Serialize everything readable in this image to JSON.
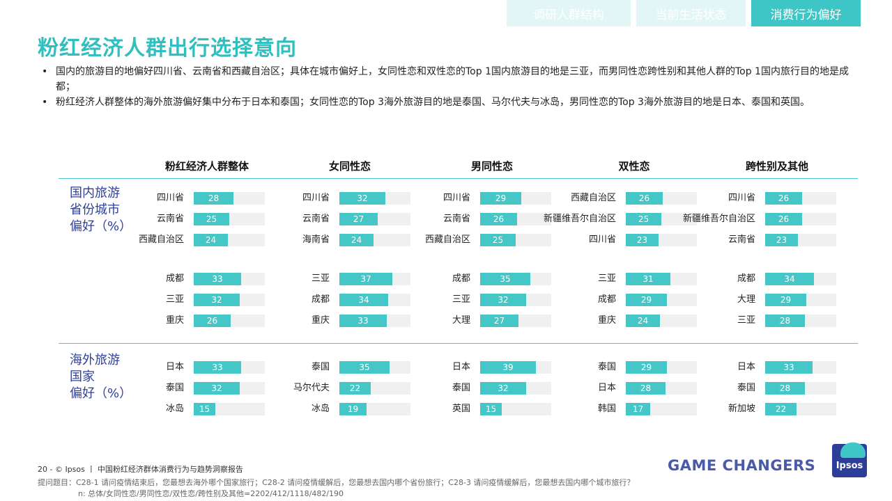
{
  "nav": {
    "tabs": [
      {
        "label": "调研人群结构",
        "active": false
      },
      {
        "label": "当前生活状态",
        "active": false
      },
      {
        "label": "消费行为偏好",
        "active": true
      }
    ]
  },
  "title": "粉红经济人群出行选择意向",
  "bullets": [
    "国内的旅游目的地偏好四川省、云南省和西藏自治区；具体在城市偏好上，女同性恋和双性恋的Top 1国内旅游目的地是三亚，而男同性恋跨性别和其他人群的Top 1国内旅行目的地是成都；",
    "粉红经济人群整体的海外旅游偏好集中分布于日本和泰国；女同性恋的Top 3海外旅游目的地是泰国、马尔代夫与冰岛，男同性恋的Top 3海外旅游目的地是日本、泰国和英国。"
  ],
  "section_labels": {
    "domestic": [
      "国内旅游",
      "省份城市",
      "偏好（%）"
    ],
    "overseas": [
      "海外旅游",
      "国家",
      "偏好（%）"
    ]
  },
  "chart_data": {
    "type": "bar",
    "unit": "%",
    "groups": [
      "粉红经济人群整体",
      "女同性恋",
      "男同性恋",
      "双性恋",
      "跨性别及其他"
    ],
    "blocks": [
      {
        "name": "province",
        "series": [
          {
            "group": "粉红经济人群整体",
            "items": [
              {
                "label": "四川省",
                "value": 28
              },
              {
                "label": "云南省",
                "value": 25
              },
              {
                "label": "西藏自治区",
                "value": 24
              }
            ]
          },
          {
            "group": "女同性恋",
            "items": [
              {
                "label": "四川省",
                "value": 32
              },
              {
                "label": "云南省",
                "value": 27
              },
              {
                "label": "海南省",
                "value": 24
              }
            ]
          },
          {
            "group": "男同性恋",
            "items": [
              {
                "label": "四川省",
                "value": 29
              },
              {
                "label": "云南省",
                "value": 26
              },
              {
                "label": "西藏自治区",
                "value": 25
              }
            ]
          },
          {
            "group": "双性恋",
            "items": [
              {
                "label": "西藏自治区",
                "value": 26
              },
              {
                "label": "新疆维吾尔自治区",
                "value": 25
              },
              {
                "label": "四川省",
                "value": 23
              }
            ]
          },
          {
            "group": "跨性别及其他",
            "items": [
              {
                "label": "四川省",
                "value": 26
              },
              {
                "label": "新疆维吾尔自治区",
                "value": 26
              },
              {
                "label": "云南省",
                "value": 23
              }
            ]
          }
        ]
      },
      {
        "name": "city",
        "series": [
          {
            "group": "粉红经济人群整体",
            "items": [
              {
                "label": "成都",
                "value": 33
              },
              {
                "label": "三亚",
                "value": 32
              },
              {
                "label": "重庆",
                "value": 26
              }
            ]
          },
          {
            "group": "女同性恋",
            "items": [
              {
                "label": "三亚",
                "value": 37
              },
              {
                "label": "成都",
                "value": 34
              },
              {
                "label": "重庆",
                "value": 33
              }
            ]
          },
          {
            "group": "男同性恋",
            "items": [
              {
                "label": "成都",
                "value": 35
              },
              {
                "label": "三亚",
                "value": 32
              },
              {
                "label": "大理",
                "value": 27
              }
            ]
          },
          {
            "group": "双性恋",
            "items": [
              {
                "label": "三亚",
                "value": 31
              },
              {
                "label": "成都",
                "value": 29
              },
              {
                "label": "重庆",
                "value": 24
              }
            ]
          },
          {
            "group": "跨性别及其他",
            "items": [
              {
                "label": "成都",
                "value": 34
              },
              {
                "label": "大理",
                "value": 29
              },
              {
                "label": "三亚",
                "value": 28
              }
            ]
          }
        ]
      },
      {
        "name": "overseas",
        "series": [
          {
            "group": "粉红经济人群整体",
            "items": [
              {
                "label": "日本",
                "value": 33
              },
              {
                "label": "泰国",
                "value": 32
              },
              {
                "label": "冰岛",
                "value": 15
              }
            ]
          },
          {
            "group": "女同性恋",
            "items": [
              {
                "label": "泰国",
                "value": 35
              },
              {
                "label": "马尔代夫",
                "value": 22
              },
              {
                "label": "冰岛",
                "value": 19
              }
            ]
          },
          {
            "group": "男同性恋",
            "items": [
              {
                "label": "日本",
                "value": 39
              },
              {
                "label": "泰国",
                "value": 32
              },
              {
                "label": "英国",
                "value": 15
              }
            ]
          },
          {
            "group": "双性恋",
            "items": [
              {
                "label": "泰国",
                "value": 29
              },
              {
                "label": "日本",
                "value": 28
              },
              {
                "label": "韩国",
                "value": 17
              }
            ]
          },
          {
            "group": "跨性别及其他",
            "items": [
              {
                "label": "日本",
                "value": 33
              },
              {
                "label": "泰国",
                "value": 28
              },
              {
                "label": "新加坡",
                "value": 22
              }
            ]
          }
        ]
      }
    ]
  },
  "footer": {
    "page_line": "20  -  © Ipsos  丨  中国粉红经济群体消费行为与趋势洞察报告",
    "question": "提问题目：C28-1 请问疫情结束后，您最想去海外哪个国家旅行；C28-2 请问疫情缓解后，您最想去国内哪个省份旅行；C28-3 请问疫情缓解后，您最想去国内哪个城市旅行？",
    "base": "n: 总体/女同性恋/男同性恋/双性恋/跨性别及其他=2202/412/1118/482/190"
  },
  "brand": {
    "tagline": "GAME CHANGERS",
    "logo_text": "Ipsos"
  }
}
